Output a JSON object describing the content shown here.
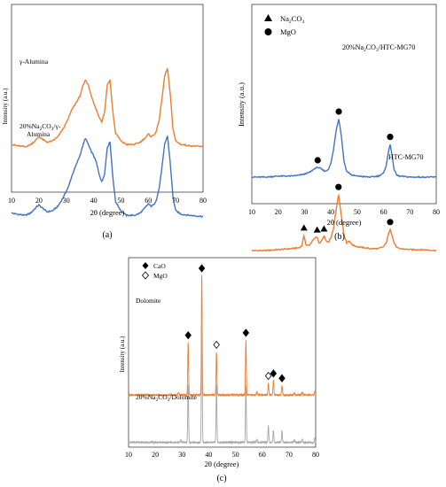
{
  "chart_data": [
    {
      "panel": "(a)",
      "type": "line",
      "xlabel": "2θ (degree)",
      "ylabel": "Intensity (a.u.)",
      "xlim": [
        10,
        80
      ],
      "xticks": [
        10,
        20,
        30,
        40,
        50,
        60,
        70,
        80
      ],
      "series": [
        {
          "name": "γ-Alumina",
          "color": "#4472c4",
          "x": [
            10,
            12,
            15,
            17,
            19,
            20,
            21,
            23,
            25,
            27,
            29,
            31,
            32,
            33,
            34,
            35,
            36,
            37,
            38,
            39,
            40,
            41,
            42,
            43,
            44,
            45,
            46,
            47,
            48,
            50,
            52,
            55,
            57,
            59,
            60,
            61,
            62,
            63,
            64,
            65,
            66,
            67,
            68,
            69,
            70,
            72,
            75,
            80
          ],
          "y": [
            0.28,
            0.27,
            0.26,
            0.28,
            0.33,
            0.35,
            0.33,
            0.29,
            0.3,
            0.34,
            0.42,
            0.52,
            0.6,
            0.66,
            0.72,
            0.78,
            0.86,
            0.93,
            0.88,
            0.82,
            0.78,
            0.72,
            0.62,
            0.55,
            0.62,
            0.85,
            0.9,
            0.6,
            0.38,
            0.3,
            0.26,
            0.26,
            0.28,
            0.33,
            0.36,
            0.34,
            0.35,
            0.4,
            0.5,
            0.68,
            0.88,
            0.95,
            0.72,
            0.42,
            0.3,
            0.27,
            0.26,
            0.25
          ]
        },
        {
          "name": "20%Na2CO3/γ-Alumina",
          "color": "#ed7d31",
          "x": [
            10,
            12,
            15,
            17,
            19,
            20,
            21,
            23,
            25,
            27,
            29,
            31,
            32,
            33,
            34,
            35,
            36,
            37,
            38,
            39,
            40,
            41,
            42,
            43,
            44,
            45,
            46,
            47,
            48,
            50,
            52,
            55,
            57,
            59,
            60,
            61,
            62,
            63,
            64,
            65,
            66,
            67,
            68,
            69,
            70,
            72,
            75,
            80
          ],
          "y": [
            0.26,
            0.25,
            0.24,
            0.26,
            0.3,
            0.33,
            0.31,
            0.28,
            0.29,
            0.33,
            0.4,
            0.5,
            0.56,
            0.6,
            0.64,
            0.68,
            0.76,
            0.82,
            0.78,
            0.7,
            0.62,
            0.56,
            0.5,
            0.46,
            0.54,
            0.78,
            0.82,
            0.55,
            0.36,
            0.29,
            0.26,
            0.26,
            0.28,
            0.32,
            0.35,
            0.33,
            0.34,
            0.38,
            0.48,
            0.66,
            0.86,
            0.92,
            0.7,
            0.4,
            0.29,
            0.26,
            0.25,
            0.24
          ]
        }
      ]
    },
    {
      "panel": "(b)",
      "type": "line",
      "xlabel": "2θ (degree)",
      "ylabel": "Intensity (a.u.)",
      "xlim": [
        10,
        80
      ],
      "xticks": [
        10,
        20,
        30,
        40,
        50,
        60,
        70,
        80
      ],
      "legend": [
        {
          "marker": "triangle",
          "label": "Na2CO3"
        },
        {
          "marker": "circle",
          "label": "MgO"
        }
      ],
      "legend_position": "top-left",
      "series": [
        {
          "name": "20%Na2CO3/HTC-MG70",
          "color": "#ed7d31",
          "x": [
            10,
            15,
            20,
            25,
            28,
            29,
            29.8,
            30.6,
            32,
            33,
            34,
            34.8,
            35.6,
            36.5,
            37.4,
            38.2,
            39,
            40,
            41,
            42,
            42.9,
            43.8,
            45,
            46,
            47,
            48,
            50,
            55,
            58,
            60,
            61,
            62,
            62.5,
            63,
            64,
            65,
            66,
            70,
            75,
            80
          ],
          "y": [
            0.2,
            0.2,
            0.21,
            0.22,
            0.23,
            0.25,
            0.36,
            0.25,
            0.26,
            0.3,
            0.33,
            0.34,
            0.27,
            0.3,
            0.35,
            0.3,
            0.28,
            0.33,
            0.42,
            0.62,
            0.78,
            0.6,
            0.36,
            0.28,
            0.3,
            0.26,
            0.24,
            0.22,
            0.22,
            0.24,
            0.28,
            0.38,
            0.42,
            0.38,
            0.28,
            0.23,
            0.22,
            0.21,
            0.21,
            0.2
          ]
        },
        {
          "name": "HTC-MG70",
          "color": "#4472c4",
          "x": [
            10,
            15,
            20,
            25,
            28,
            30,
            32,
            33,
            34,
            35,
            36,
            37,
            38,
            39,
            40,
            41,
            42,
            43,
            44,
            45,
            46,
            48,
            50,
            55,
            58,
            60,
            61,
            62,
            62.5,
            63,
            64,
            65,
            66,
            70,
            75,
            80
          ],
          "y": [
            0.2,
            0.2,
            0.21,
            0.21,
            0.22,
            0.23,
            0.25,
            0.27,
            0.29,
            0.3,
            0.29,
            0.27,
            0.26,
            0.28,
            0.34,
            0.48,
            0.68,
            0.8,
            0.62,
            0.36,
            0.26,
            0.22,
            0.21,
            0.2,
            0.21,
            0.24,
            0.32,
            0.48,
            0.54,
            0.46,
            0.28,
            0.22,
            0.21,
            0.2,
            0.2,
            0.2
          ]
        }
      ],
      "markers": [
        {
          "series": "20%Na2CO3/HTC-MG70",
          "type": "triangle",
          "x": [
            29.8,
            34.8,
            37.4
          ]
        },
        {
          "series": "20%Na2CO3/HTC-MG70",
          "type": "circle",
          "x": [
            42.9,
            62.5
          ]
        },
        {
          "series": "HTC-MG70",
          "type": "circle",
          "x": [
            35,
            43,
            62.5
          ]
        }
      ]
    },
    {
      "panel": "(c)",
      "type": "line",
      "xlabel": "2θ (degree)",
      "ylabel": "Intensity (a.u.)",
      "xlim": [
        10,
        80
      ],
      "xticks": [
        10,
        20,
        30,
        40,
        50,
        60,
        70,
        80
      ],
      "legend": [
        {
          "marker": "diamond-filled",
          "label": "CaO"
        },
        {
          "marker": "diamond-open",
          "label": "MgO"
        }
      ],
      "legend_position": "top-left",
      "series": [
        {
          "name": "Dolomite",
          "color": "#ed7d31",
          "baseline": 0.2,
          "peaks": [
            [
              28.7,
              0.012
            ],
            [
              32.3,
              0.22
            ],
            [
              37.4,
              0.5
            ],
            [
              42.9,
              0.18
            ],
            [
              53.9,
              0.23
            ],
            [
              58,
              0.015
            ],
            [
              62.3,
              0.05
            ],
            [
              64.2,
              0.06
            ],
            [
              67.4,
              0.04
            ],
            [
              72,
              0.01
            ],
            [
              75,
              0.012
            ],
            [
              79.7,
              0.015
            ]
          ]
        },
        {
          "name": "20%Na2CO3/Dolomite",
          "color": "#a6a6a6",
          "baseline": 0.02,
          "peaks": [
            [
              29.5,
              0.01
            ],
            [
              32.3,
              0.24
            ],
            [
              37.4,
              0.52
            ],
            [
              42.9,
              0.24
            ],
            [
              53.9,
              0.24
            ],
            [
              58,
              0.015
            ],
            [
              62.3,
              0.07
            ],
            [
              64.2,
              0.05
            ],
            [
              67.4,
              0.05
            ],
            [
              72,
              0.01
            ],
            [
              75,
              0.015
            ],
            [
              79.7,
              0.02
            ]
          ]
        }
      ],
      "markers": [
        {
          "series": "Dolomite",
          "type": "diamond-filled",
          "x": [
            32.3,
            37.4,
            53.9,
            64.2,
            67.4
          ]
        },
        {
          "series": "Dolomite",
          "type": "diamond-open",
          "x": [
            42.9,
            62.3
          ]
        }
      ]
    }
  ],
  "labels": {
    "a_series1": "γ-Alumina",
    "a_series2_line1": "20%Na",
    "a_series2_sub": "2",
    "a_series2_mid": "CO",
    "a_series2_sub2": "3",
    "a_series2_end": "/γ-",
    "a_series2_line2": "Alumina",
    "b_leg1": "Na",
    "b_leg1_sub": "2",
    "b_leg1_mid": "CO",
    "b_leg1_sub2": "3",
    "b_leg2": "MgO",
    "b_series1_a": "20%Na",
    "b_series1_sub": "2",
    "b_series1_b": "CO",
    "b_series1_sub2": "3",
    "b_series1_c": "/HTC-MG70",
    "b_series2": "HTC-MG70",
    "c_leg1": "CaO",
    "c_leg2": "MgO",
    "c_series1": "Dolomite",
    "c_series2_a": "20%Na",
    "c_series2_sub": "2",
    "c_series2_b": "CO",
    "c_series2_sub2": "3",
    "c_series2_c": "/Dolomite",
    "panel_a": "(a)",
    "panel_b": "(b)",
    "panel_c": "(c)",
    "xlabel_a": "2θ (degree)",
    "xlabel_b": "2θ (degree)",
    "xlabel_c": "2θ (degree)",
    "ylabel": "Intensity (a.u.)"
  }
}
